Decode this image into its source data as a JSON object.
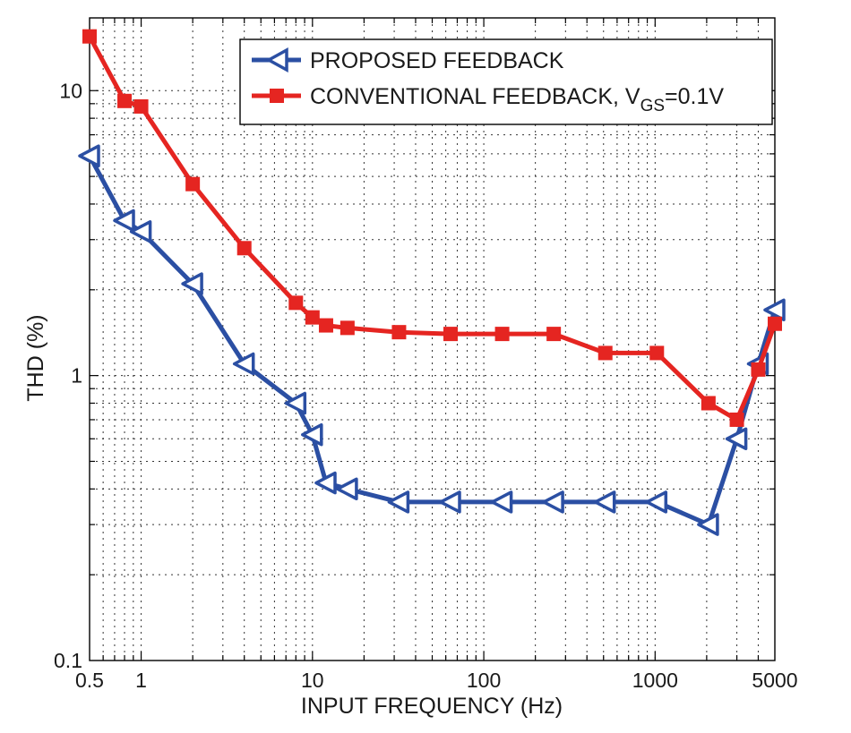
{
  "chart_data": {
    "type": "line",
    "xlabel": "INPUT FREQUENCY (Hz)",
    "ylabel": "THD (%)",
    "x_scale": "log",
    "y_scale": "log",
    "xlim": [
      0.5,
      5000
    ],
    "ylim": [
      0.1,
      18
    ],
    "x_ticks": [
      {
        "value": 0.5,
        "label": "0.5"
      },
      {
        "value": 1,
        "label": "1"
      },
      {
        "value": 10,
        "label": "10"
      },
      {
        "value": 100,
        "label": "100"
      },
      {
        "value": 1000,
        "label": "1000"
      },
      {
        "value": 5000,
        "label": "5000"
      }
    ],
    "y_ticks": [
      {
        "value": 0.1,
        "label": "0.1"
      },
      {
        "value": 1,
        "label": "1"
      },
      {
        "value": 10,
        "label": "10"
      }
    ],
    "grid": true,
    "legend_position": "top-right",
    "legend": {
      "entry1": "PROPOSED FEEDBACK",
      "entry2_main": "CONVENTIONAL FEEDBACK, V",
      "entry2_sub": "GS",
      "entry2_tail": "=0.1V"
    },
    "series": [
      {
        "name": "PROPOSED FEEDBACK",
        "color": "#2b4fa3",
        "marker": "triangle-left",
        "x": [
          0.5,
          0.8,
          1,
          2,
          4,
          8,
          10,
          12,
          16,
          32,
          64,
          128,
          256,
          512,
          1024,
          2048,
          3000,
          4000,
          5000
        ],
        "y": [
          5.9,
          3.5,
          3.2,
          2.1,
          1.1,
          0.8,
          0.62,
          0.42,
          0.4,
          0.36,
          0.36,
          0.36,
          0.36,
          0.36,
          0.36,
          0.3,
          0.6,
          1.1,
          1.7
        ]
      },
      {
        "name": "CONVENTIONAL FEEDBACK, VGS=0.1V",
        "color": "#e52521",
        "marker": "square",
        "x": [
          0.5,
          0.8,
          1,
          2,
          4,
          8,
          10,
          12,
          16,
          32,
          64,
          128,
          256,
          512,
          1024,
          2048,
          3000,
          4000,
          5000
        ],
        "y": [
          15.5,
          9.2,
          8.8,
          4.7,
          2.8,
          1.8,
          1.6,
          1.5,
          1.47,
          1.42,
          1.4,
          1.4,
          1.4,
          1.2,
          1.2,
          0.8,
          0.7,
          1.05,
          1.52
        ]
      }
    ]
  }
}
